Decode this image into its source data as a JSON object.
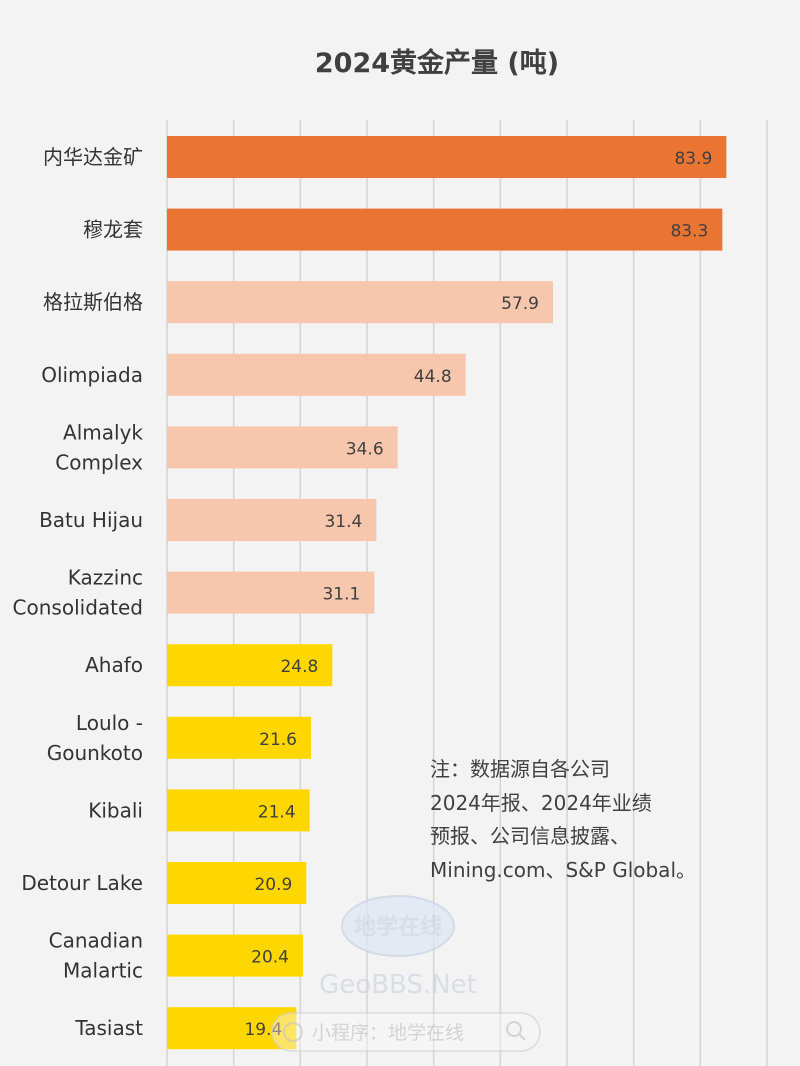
{
  "chart_data": {
    "type": "bar",
    "orientation": "horizontal",
    "title": "2024黄金产量 (吨)",
    "categories": [
      [
        "内华达金矿"
      ],
      [
        "穆龙套"
      ],
      [
        "格拉斯伯格"
      ],
      [
        "Olimpiada"
      ],
      [
        "Almalyk",
        "Complex"
      ],
      [
        "Batu Hijau"
      ],
      [
        "Kazzinc",
        "Consolidated"
      ],
      [
        "Ahafo"
      ],
      [
        "Loulo -",
        "Gounkoto"
      ],
      [
        "Kibali"
      ],
      [
        "Detour Lake"
      ],
      [
        "Canadian",
        "Malartic"
      ],
      [
        "Tasiast"
      ]
    ],
    "values": [
      83.9,
      83.3,
      57.9,
      44.8,
      34.6,
      31.4,
      31.1,
      24.8,
      21.6,
      21.4,
      20.9,
      20.4,
      19.4
    ],
    "value_labels": [
      "83.9",
      "83.3",
      "57.9",
      "44.8",
      "34.6",
      "31.4",
      "31.1",
      "24.8",
      "21.6",
      "21.4",
      "20.9",
      "20.4",
      "19.4"
    ],
    "bar_colors": [
      "#ea7533",
      "#ea7533",
      "#f6c6ad",
      "#f6c6ad",
      "#f6c6ad",
      "#f6c6ad",
      "#f6c6ad",
      "#ffd700",
      "#ffd700",
      "#ffd700",
      "#ffd700",
      "#ffd700",
      "#ffd700"
    ],
    "xlim": [
      0,
      90
    ],
    "grid": true,
    "grid_step": 10
  },
  "note": {
    "lines": [
      "注：数据源自各公司",
      "2024年报、2024年业绩",
      "预报、公司信息披露、",
      "Mining.com、S&P Global。"
    ]
  },
  "watermark": {
    "logo_text": "地学在线",
    "site_text": "GeoBBS.Net",
    "search_text": "小程序：地学在线"
  }
}
